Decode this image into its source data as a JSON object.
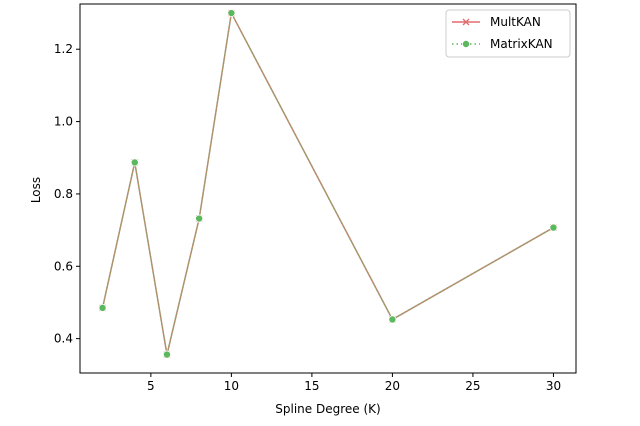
{
  "chart_data": {
    "type": "line",
    "title": "",
    "xlabel": "Spline Degree (K)",
    "ylabel": "Loss",
    "xlim": [
      0.6,
      31.4
    ],
    "ylim": [
      0.305,
      1.325
    ],
    "xticks": [
      5,
      10,
      15,
      20,
      25,
      30
    ],
    "yticks": [
      0.4,
      0.6,
      0.8,
      1.0,
      1.2
    ],
    "grid": false,
    "legend_position": "top-right",
    "x": [
      2,
      4,
      6,
      8,
      10,
      20,
      30
    ],
    "series": [
      {
        "name": "MultKAN",
        "values": [
          0.485,
          0.887,
          0.356,
          0.732,
          1.3,
          0.453,
          0.707
        ],
        "color": "#e06c6f",
        "marker": "x",
        "linestyle": "solid"
      },
      {
        "name": "MatrixKAN",
        "values": [
          0.485,
          0.887,
          0.356,
          0.732,
          1.3,
          0.453,
          0.707
        ],
        "color": "#5cb85c",
        "marker": "circle",
        "linestyle": "dotted"
      }
    ],
    "overlap_line_color": "#c08a72"
  }
}
